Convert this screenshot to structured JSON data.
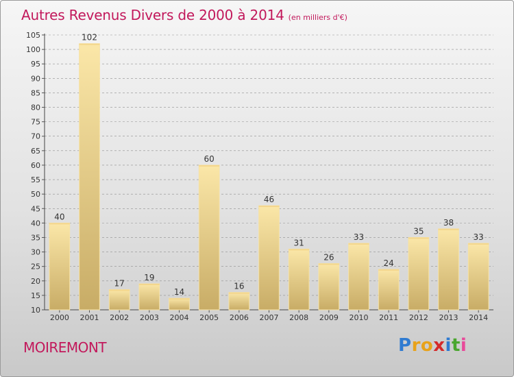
{
  "header": {
    "title": "Autres Revenus Divers de 2000 à 2014",
    "subtitle": "(en milliers d'€)"
  },
  "footer": {
    "commune": "MOIREMONT",
    "brand": "Proxiti",
    "brand_colors": [
      "#2f7bd1",
      "#e8a21a",
      "#e8a21a",
      "#d42a2a",
      "#2f7bd1",
      "#4aa62f",
      "#e84a9a"
    ]
  },
  "colors": {
    "title": "#c2185b",
    "bar_light": "#f8e0a4",
    "bar_dark": "#c8ac66",
    "grid": "#9a9a9a"
  },
  "chart_data": {
    "type": "bar",
    "categories": [
      "2000",
      "2001",
      "2002",
      "2003",
      "2004",
      "2005",
      "2006",
      "2007",
      "2008",
      "2009",
      "2010",
      "2011",
      "2012",
      "2013",
      "2014"
    ],
    "values": [
      40,
      102,
      17,
      19,
      14,
      60,
      16,
      46,
      31,
      26,
      33,
      24,
      35,
      38,
      33
    ],
    "ylim": [
      10,
      105
    ],
    "yticks": [
      10,
      15,
      20,
      25,
      30,
      35,
      40,
      45,
      50,
      55,
      60,
      65,
      70,
      75,
      80,
      85,
      90,
      95,
      100,
      105
    ],
    "grid": "dashed horizontal"
  }
}
